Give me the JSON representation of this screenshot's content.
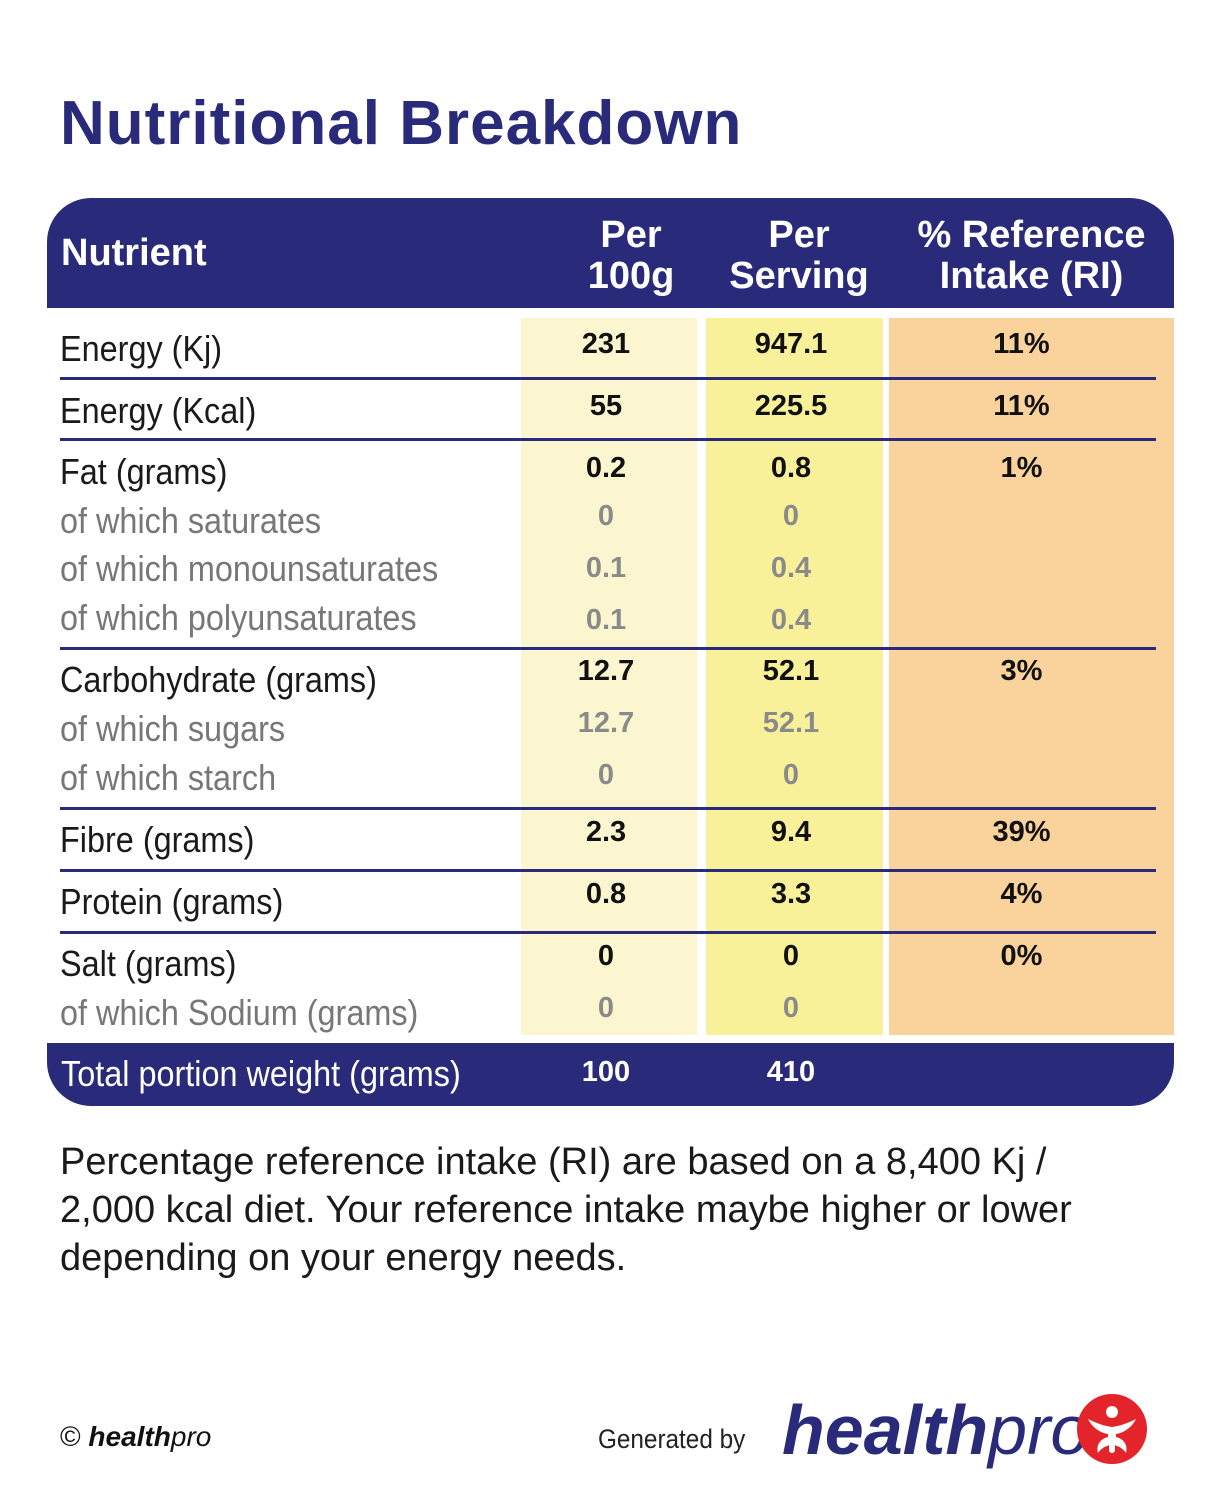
{
  "title": "Nutritional Breakdown",
  "headers": {
    "nutrient": "Nutrient",
    "per100_line1": "Per",
    "per100_line2": "100g",
    "serving_line1": "Per",
    "serving_line2": "Serving",
    "ri_line1": "% Reference",
    "ri_line2": "Intake (RI)"
  },
  "rows": [
    {
      "label": "Energy (Kj)",
      "per100": "231",
      "serving": "947.1",
      "ri": "11%",
      "sub": false
    },
    {
      "label": "Energy (Kcal)",
      "per100": "55",
      "serving": "225.5",
      "ri": "11%",
      "sub": false
    },
    {
      "label": "Fat (grams)",
      "per100": "0.2",
      "serving": "0.8",
      "ri": "1%",
      "sub": false
    },
    {
      "label": "of which saturates",
      "per100": "0",
      "serving": "0",
      "ri": "",
      "sub": true
    },
    {
      "label": "of which monounsaturates",
      "per100": "0.1",
      "serving": "0.4",
      "ri": "",
      "sub": true
    },
    {
      "label": "of which polyunsaturates",
      "per100": "0.1",
      "serving": "0.4",
      "ri": "",
      "sub": true
    },
    {
      "label": "Carbohydrate (grams)",
      "per100": "12.7",
      "serving": "52.1",
      "ri": "3%",
      "sub": false
    },
    {
      "label": "of which sugars",
      "per100": "12.7",
      "serving": "52.1",
      "ri": "",
      "sub": true
    },
    {
      "label": "of which starch",
      "per100": "0",
      "serving": "0",
      "ri": "",
      "sub": true
    },
    {
      "label": "Fibre (grams)",
      "per100": "2.3",
      "serving": "9.4",
      "ri": "39%",
      "sub": false
    },
    {
      "label": "Protein (grams)",
      "per100": "0.8",
      "serving": "3.3",
      "ri": "4%",
      "sub": false
    },
    {
      "label": "Salt (grams)",
      "per100": "0",
      "serving": "0",
      "ri": "0%",
      "sub": false
    },
    {
      "label": "of which Sodium (grams)",
      "per100": "0",
      "serving": "0",
      "ri": "",
      "sub": true
    }
  ],
  "total": {
    "label": "Total portion weight (grams)",
    "per100": "100",
    "serving": "410"
  },
  "note": "Percentage reference intake (RI) are based on a 8,400 Kj / 2,000 kcal diet. Your reference intake maybe higher or lower depending on your energy needs.",
  "footer": {
    "copyright_symbol": "©",
    "copyright_brand_bold": "health",
    "copyright_brand_italic": "pro",
    "generated_by": "Generated by",
    "logo_bold": "health",
    "logo_light": "pro"
  },
  "colors": {
    "brand_navy": "#2a2a7a",
    "col_per100": "#fbf6cf",
    "col_serving": "#f9f19a",
    "col_ri": "#fad29c",
    "logo_red": "#e3242b"
  },
  "icons": {
    "logo": "healthpro-person-icon"
  }
}
